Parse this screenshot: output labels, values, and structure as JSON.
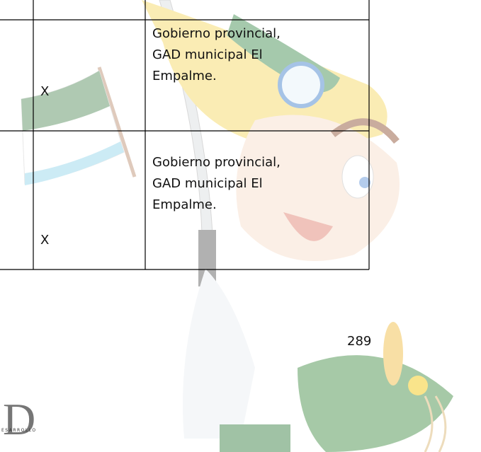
{
  "table": {
    "rows": [
      {
        "mark": "X",
        "responsible": [
          "Gobierno provincial,",
          "GAD municipal El",
          "Empalme."
        ]
      },
      {
        "mark": "X",
        "responsible": [
          "Gobierno provincial,",
          "GAD municipal El",
          "Empalme."
        ]
      }
    ]
  },
  "footer": {
    "page_number": "289",
    "logo_letter": "D",
    "logo_text": "ESARROLLO"
  }
}
